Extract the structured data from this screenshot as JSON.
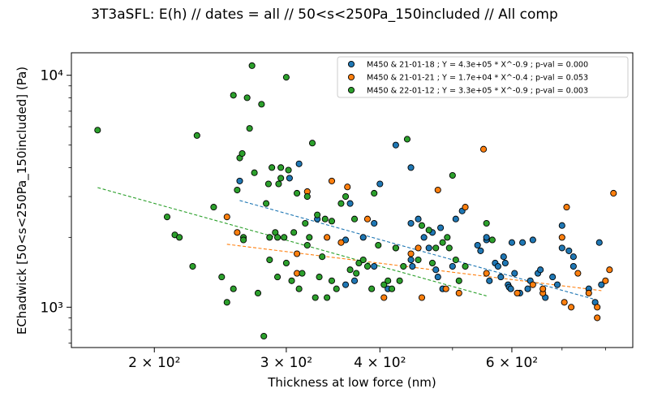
{
  "chart_data": {
    "type": "scatter",
    "title": "3T3aSFL: E(h) // dates = all // 50<s<250Pa_150included // All comp",
    "xlabel": "Thickness at low force (nm)",
    "ylabel": "EChadwick [50<s<250Pa_150included]  (Pa)",
    "x_scale": "log",
    "y_scale": "log",
    "xlim": [
      155,
      870
    ],
    "ylim": [
      670,
      12500
    ],
    "x_ticks": [
      {
        "value": 200,
        "label": "2 × 10²"
      },
      {
        "value": 300,
        "label": "3 × 10²"
      },
      {
        "value": 400,
        "label": "4 × 10²"
      },
      {
        "value": 600,
        "label": "6 × 10²"
      }
    ],
    "y_ticks": [
      {
        "value": 1000,
        "label": "10³"
      },
      {
        "value": 10000,
        "label": "10⁴"
      }
    ],
    "grid": false,
    "legend_position": "top-right",
    "series": [
      {
        "name": "M450 & 21-01-18 ; Y = 4.3e+05 * X^-0.9 ; p-val = 0.000",
        "color": "#1f77b4",
        "fit": {
          "a": 430000,
          "b": -0.9,
          "x_range": [
            260,
            770
          ]
        },
        "points": [
          [
            260,
            3500
          ],
          [
            303,
            3600
          ],
          [
            312,
            4150
          ],
          [
            330,
            2400
          ],
          [
            360,
            1950
          ],
          [
            360,
            1250
          ],
          [
            365,
            2800
          ],
          [
            370,
            1300
          ],
          [
            380,
            2000
          ],
          [
            393,
            2300
          ],
          [
            400,
            3400
          ],
          [
            393,
            1500
          ],
          [
            410,
            1200
          ],
          [
            420,
            5000
          ],
          [
            440,
            4000
          ],
          [
            442,
            1500
          ],
          [
            450,
            2400
          ],
          [
            440,
            2300
          ],
          [
            440,
            1600
          ],
          [
            458,
            2000
          ],
          [
            465,
            1800
          ],
          [
            475,
            1450
          ],
          [
            470,
            2100
          ],
          [
            478,
            1350
          ],
          [
            482,
            2200
          ],
          [
            485,
            1200
          ],
          [
            500,
            1500
          ],
          [
            505,
            2400
          ],
          [
            515,
            2600
          ],
          [
            540,
            1850
          ],
          [
            545,
            1750
          ],
          [
            555,
            1950
          ],
          [
            555,
            2000
          ],
          [
            560,
            1300
          ],
          [
            570,
            1550
          ],
          [
            575,
            1500
          ],
          [
            580,
            1350
          ],
          [
            585,
            1650
          ],
          [
            588,
            1550
          ],
          [
            593,
            1250
          ],
          [
            595,
            1220
          ],
          [
            598,
            1200
          ],
          [
            600,
            1900
          ],
          [
            605,
            1400
          ],
          [
            615,
            1150
          ],
          [
            620,
            1900
          ],
          [
            630,
            1200
          ],
          [
            635,
            1300
          ],
          [
            640,
            1950
          ],
          [
            650,
            1400
          ],
          [
            655,
            1450
          ],
          [
            665,
            1100
          ],
          [
            680,
            1350
          ],
          [
            690,
            1250
          ],
          [
            700,
            2250
          ],
          [
            700,
            1800
          ],
          [
            715,
            1750
          ],
          [
            725,
            1650
          ],
          [
            725,
            1500
          ],
          [
            760,
            1200
          ],
          [
            785,
            1900
          ],
          [
            790,
            1250
          ],
          [
            775,
            1050
          ]
        ]
      },
      {
        "name": "M450 & 21-01-21 ; Y = 1.7e+04 * X^-0.4 ; p-val = 0.053",
        "color": "#ff7f0e",
        "fit": {
          "a": 17000,
          "b": -0.4,
          "x_range": [
            250,
            790
          ]
        },
        "points": [
          [
            250,
            2450
          ],
          [
            258,
            2100
          ],
          [
            310,
            1700
          ],
          [
            310,
            1400
          ],
          [
            320,
            3150
          ],
          [
            340,
            2000
          ],
          [
            345,
            3500
          ],
          [
            355,
            1900
          ],
          [
            362,
            3300
          ],
          [
            385,
            2400
          ],
          [
            405,
            1100
          ],
          [
            420,
            1800
          ],
          [
            440,
            1700
          ],
          [
            450,
            1800
          ],
          [
            455,
            1100
          ],
          [
            478,
            3200
          ],
          [
            490,
            1200
          ],
          [
            510,
            1150
          ],
          [
            520,
            2700
          ],
          [
            550,
            4800
          ],
          [
            555,
            1400
          ],
          [
            610,
            1150
          ],
          [
            640,
            1250
          ],
          [
            660,
            1150
          ],
          [
            660,
            1200
          ],
          [
            700,
            2000
          ],
          [
            705,
            1050
          ],
          [
            710,
            2700
          ],
          [
            720,
            1000
          ],
          [
            735,
            1400
          ],
          [
            760,
            1150
          ],
          [
            780,
            1000
          ],
          [
            780,
            900
          ],
          [
            800,
            1300
          ],
          [
            810,
            1450
          ],
          [
            820,
            3100
          ]
        ]
      },
      {
        "name": "M450 & 22-01-12 ; Y = 3.3e+05 * X^-0.9 ; p-val = 0.003",
        "color": "#2ca02c",
        "fit": {
          "a": 330000,
          "b": -0.9,
          "x_range": [
            168,
            555
          ]
        },
        "points": [
          [
            168,
            5800
          ],
          [
            208,
            2450
          ],
          [
            213,
            2050
          ],
          [
            216,
            2000
          ],
          [
            225,
            1500
          ],
          [
            228,
            5500
          ],
          [
            240,
            2700
          ],
          [
            246,
            1350
          ],
          [
            250,
            1050
          ],
          [
            255,
            1200
          ],
          [
            255,
            8200
          ],
          [
            258,
            3200
          ],
          [
            260,
            4400
          ],
          [
            262,
            4600
          ],
          [
            263,
            2000
          ],
          [
            263,
            1950
          ],
          [
            266,
            8000
          ],
          [
            268,
            5900
          ],
          [
            270,
            11000
          ],
          [
            272,
            3800
          ],
          [
            275,
            1150
          ],
          [
            278,
            7500
          ],
          [
            280,
            750
          ],
          [
            282,
            2800
          ],
          [
            284,
            3400
          ],
          [
            285,
            2000
          ],
          [
            285,
            1600
          ],
          [
            287,
            4000
          ],
          [
            290,
            2100
          ],
          [
            292,
            2000
          ],
          [
            292,
            1350
          ],
          [
            293,
            3400
          ],
          [
            295,
            3600
          ],
          [
            295,
            4000
          ],
          [
            298,
            2000
          ],
          [
            300,
            1550
          ],
          [
            300,
            9800
          ],
          [
            302,
            3900
          ],
          [
            305,
            1300
          ],
          [
            307,
            2100
          ],
          [
            310,
            3100
          ],
          [
            312,
            1200
          ],
          [
            315,
            1400
          ],
          [
            318,
            2300
          ],
          [
            320,
            3000
          ],
          [
            320,
            1850
          ],
          [
            322,
            2000
          ],
          [
            325,
            5100
          ],
          [
            328,
            1100
          ],
          [
            330,
            2500
          ],
          [
            332,
            1350
          ],
          [
            335,
            1650
          ],
          [
            338,
            2400
          ],
          [
            340,
            1100
          ],
          [
            345,
            2350
          ],
          [
            345,
            1300
          ],
          [
            350,
            1200
          ],
          [
            355,
            2800
          ],
          [
            360,
            3000
          ],
          [
            365,
            1450
          ],
          [
            370,
            2400
          ],
          [
            372,
            1400
          ],
          [
            375,
            1550
          ],
          [
            380,
            1600
          ],
          [
            385,
            1500
          ],
          [
            390,
            1200
          ],
          [
            393,
            3100
          ],
          [
            398,
            1850
          ],
          [
            405,
            1250
          ],
          [
            410,
            1300
          ],
          [
            415,
            1200
          ],
          [
            420,
            1800
          ],
          [
            425,
            1300
          ],
          [
            430,
            1500
          ],
          [
            435,
            5300
          ],
          [
            450,
            1600
          ],
          [
            455,
            2250
          ],
          [
            465,
            2150
          ],
          [
            470,
            1550
          ],
          [
            475,
            1800
          ],
          [
            485,
            1900
          ],
          [
            492,
            2000
          ],
          [
            495,
            1800
          ],
          [
            500,
            3700
          ],
          [
            505,
            1600
          ],
          [
            510,
            1300
          ],
          [
            520,
            1500
          ],
          [
            555,
            2300
          ],
          [
            565,
            1950
          ]
        ]
      }
    ]
  }
}
